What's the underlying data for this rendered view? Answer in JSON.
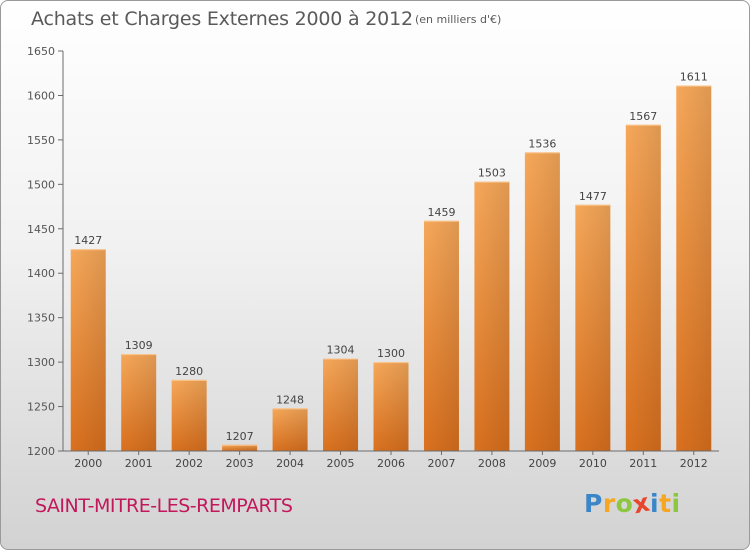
{
  "chart_data": {
    "type": "bar",
    "title": "Achats et Charges Externes 2000 à 2012",
    "subtitle": "(en milliers d'€)",
    "categories": [
      "2000",
      "2001",
      "2002",
      "2003",
      "2004",
      "2005",
      "2006",
      "2007",
      "2008",
      "2009",
      "2010",
      "2011",
      "2012"
    ],
    "values": [
      1427,
      1309,
      1280,
      1207,
      1248,
      1304,
      1300,
      1459,
      1503,
      1536,
      1477,
      1567,
      1611
    ],
    "ylim": [
      1200,
      1650
    ],
    "yticks": [
      1200,
      1250,
      1300,
      1350,
      1400,
      1450,
      1500,
      1550,
      1600,
      1650
    ],
    "xlabel": "",
    "ylabel": "",
    "grid": false,
    "bar_color": "#f0923a",
    "axis_color": "#6b6b6b"
  },
  "location": "SAINT-MITRE-LES-REMPARTS",
  "logo": {
    "letters": [
      "P",
      "r",
      "o",
      "x",
      "i",
      "t",
      "i"
    ],
    "colors": [
      "#3a86c8",
      "#f5a623",
      "#8dc63f",
      "#e8452c",
      "#3a86c8",
      "#f5a623",
      "#8dc63f"
    ]
  }
}
